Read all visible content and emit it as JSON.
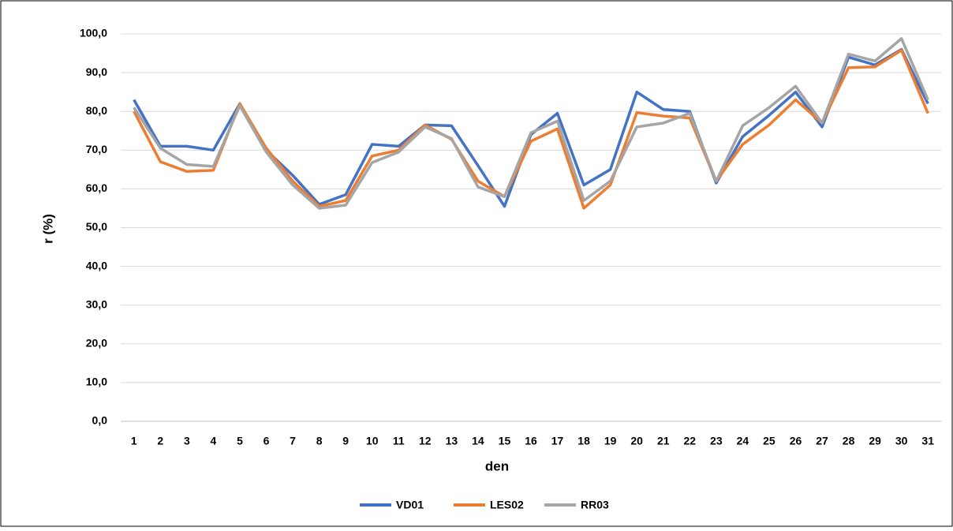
{
  "chart_data": {
    "type": "line",
    "y_label": "r (%)",
    "x_label": "den",
    "categories": [
      "1",
      "2",
      "3",
      "4",
      "5",
      "6",
      "7",
      "8",
      "9",
      "10",
      "11",
      "12",
      "13",
      "14",
      "15",
      "16",
      "17",
      "18",
      "19",
      "20",
      "21",
      "22",
      "23",
      "24",
      "25",
      "26",
      "27",
      "28",
      "29",
      "30",
      "31"
    ],
    "series": [
      {
        "name": "VD01",
        "color": "#4472c4",
        "values": [
          83,
          71,
          71,
          70,
          82,
          70,
          63.5,
          56,
          58.5,
          71.5,
          71,
          76.5,
          76.3,
          66,
          55.5,
          74,
          79.5,
          61,
          65,
          85,
          80.5,
          80,
          61.5,
          73.5,
          79,
          85,
          76,
          94,
          92,
          96,
          82
        ]
      },
      {
        "name": "LES02",
        "color": "#ed7d31",
        "values": [
          80,
          67,
          64.5,
          64.8,
          82,
          70.5,
          62,
          55.5,
          57,
          68.5,
          70,
          76.5,
          72.8,
          62,
          58,
          72.3,
          75.5,
          55,
          61,
          79.7,
          78.8,
          78.3,
          62,
          71.5,
          76.5,
          83,
          77,
          91.3,
          91.5,
          95.8,
          79.5
        ]
      },
      {
        "name": "RR03",
        "color": "#a5a5a5",
        "values": [
          81,
          70.5,
          66.3,
          65.8,
          81.5,
          69.5,
          61,
          55,
          55.8,
          66.8,
          69.5,
          76,
          73,
          60.5,
          58,
          74.5,
          77.5,
          57,
          62,
          76,
          77,
          79.5,
          62,
          76.3,
          81,
          86.5,
          77,
          94.8,
          93,
          98.8,
          83
        ]
      }
    ],
    "ylim": [
      0,
      100
    ],
    "yticks": [
      {
        "value": 0,
        "label": "0,0"
      },
      {
        "value": 10,
        "label": "10,0"
      },
      {
        "value": 20,
        "label": "20,0"
      },
      {
        "value": 30,
        "label": "30,0"
      },
      {
        "value": 40,
        "label": "40,0"
      },
      {
        "value": 50,
        "label": "50,0"
      },
      {
        "value": 60,
        "label": "60,0"
      },
      {
        "value": 70,
        "label": "70,0"
      },
      {
        "value": 80,
        "label": "80,0"
      },
      {
        "value": 90,
        "label": "90,0"
      },
      {
        "value": 100,
        "label": "100,0"
      }
    ],
    "grid": true,
    "legend": "bottom"
  }
}
